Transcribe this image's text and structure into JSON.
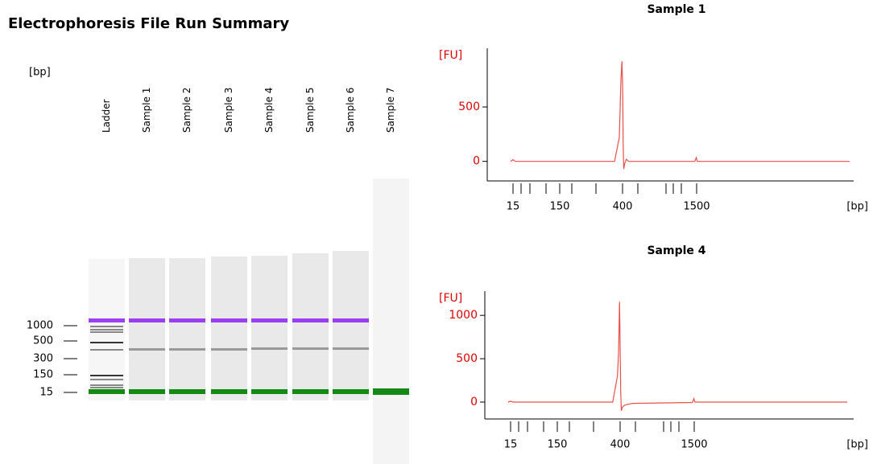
{
  "title": "Electrophoresis File Run Summary",
  "gel": {
    "unit": "[bp]",
    "lanes": [
      "Ladder",
      "Sample 1",
      "Sample 2",
      "Sample 3",
      "Sample 4",
      "Sample 5",
      "Sample 6",
      "Sample 7"
    ],
    "ladder_labels": [
      "1000",
      "500",
      "300",
      "150",
      "15"
    ]
  },
  "chart_data": [
    {
      "type": "line",
      "title": "Sample 1",
      "ylabel": "[FU]",
      "xlabel": "[bp]",
      "color": "#e8504a",
      "x": [
        12,
        15,
        18,
        370,
        388,
        394,
        398,
        401,
        404,
        408,
        414,
        425,
        440,
        1440,
        1490,
        1520,
        1560,
        6500
      ],
      "values": [
        0,
        15,
        0,
        0,
        220,
        750,
        920,
        650,
        150,
        -70,
        -20,
        20,
        0,
        0,
        35,
        0,
        0,
        0
      ],
      "ylim": [
        -180,
        1040
      ],
      "yticks": [
        0,
        500
      ],
      "xticks": [
        15,
        {
          "value": 25,
          "label": null
        },
        {
          "value": 50,
          "label": null
        },
        {
          "value": 100,
          "label": null
        },
        150,
        {
          "value": 200,
          "label": null
        },
        {
          "value": 300,
          "label": null
        },
        400,
        {
          "value": 500,
          "label": null
        },
        {
          "value": 700,
          "label": null
        },
        {
          "value": 850,
          "label": null
        },
        {
          "value": 1000,
          "label": null
        },
        1500
      ]
    },
    {
      "type": "line",
      "title": "Sample 4",
      "ylabel": "[FU]",
      "xlabel": "[bp]",
      "color": "#e8504a",
      "x": [
        12,
        15,
        18,
        372,
        390,
        394,
        398,
        401,
        404,
        408,
        414,
        430,
        480,
        1440,
        1490,
        1520,
        1560,
        6500
      ],
      "values": [
        0,
        10,
        0,
        0,
        300,
        550,
        1157,
        500,
        100,
        -100,
        -60,
        -35,
        -15,
        -5,
        40,
        0,
        0,
        0
      ],
      "ylim": [
        -195,
        1280
      ],
      "yticks": [
        0,
        500,
        1000
      ],
      "xticks": [
        15,
        {
          "value": 25,
          "label": null
        },
        {
          "value": 50,
          "label": null
        },
        {
          "value": 100,
          "label": null
        },
        150,
        {
          "value": 200,
          "label": null
        },
        {
          "value": 300,
          "label": null
        },
        400,
        {
          "value": 500,
          "label": null
        },
        {
          "value": 700,
          "label": null
        },
        {
          "value": 850,
          "label": null
        },
        {
          "value": 1000,
          "label": null
        },
        1500
      ]
    }
  ]
}
